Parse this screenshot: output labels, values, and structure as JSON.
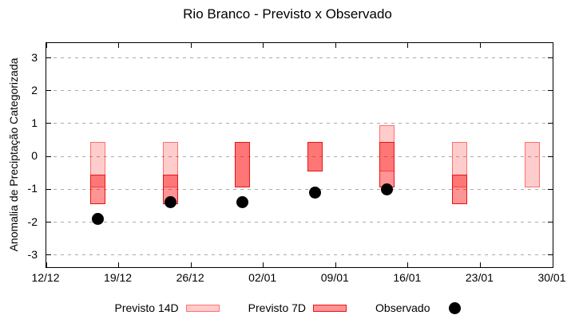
{
  "title": "Rio Branco - Previsto x Observado",
  "y_axis": {
    "label": "Anomalia de Preciptação Categorizada",
    "tick_labels": [
      "3",
      "2",
      "1",
      "0",
      "-1",
      "-2",
      "-3"
    ],
    "tick_values": [
      3,
      2,
      1,
      0,
      -1,
      -2,
      -3
    ]
  },
  "x_axis": {
    "tick_labels": [
      "12/12",
      "19/12",
      "26/12",
      "02/01",
      "09/01",
      "16/01",
      "23/01",
      "30/01"
    ],
    "tick_days": [
      0,
      7,
      14,
      21,
      28,
      35,
      42,
      49
    ]
  },
  "legend": {
    "previsto_14d_label": "Previsto 14D",
    "previsto_7d_label": "Previsto 7D",
    "observado_label": "Observado"
  },
  "colors": {
    "forecast_base": "#ff0000",
    "fill_14d_on_white": "#ffcccc",
    "border_14d_on_white": "#ff8c8c",
    "fill_7d_on_white": "#ff9494",
    "fill_overlap_on_white": "#ff7070",
    "border_7d": "#e81414",
    "observed": "#000000",
    "gridline": "#ababab"
  },
  "chart_data": {
    "type": "bar",
    "subtype": "range-bars-with-scatter-overlay",
    "title": "Rio Branco - Previsto x Observado",
    "xlabel": "",
    "ylabel": "Anomalia de Preciptação Categorizada",
    "ylim": [
      -3.37,
      3.45
    ],
    "xlim_days": [
      0,
      49
    ],
    "grid": "horizontal-dashed",
    "legend_position": "bottom",
    "x_tick_labels": [
      "12/12",
      "19/12",
      "26/12",
      "02/01",
      "09/01",
      "16/01",
      "23/01",
      "30/01"
    ],
    "dates": [
      "17/12",
      "24/12",
      "31/12",
      "07/01",
      "14/01",
      "21/01",
      "28/01"
    ],
    "x_days": [
      5,
      12,
      19,
      26,
      33,
      40,
      47
    ],
    "series": [
      {
        "name": "Previsto 14D",
        "type": "range-bar",
        "ranges": [
          [
            -0.95,
            0.45
          ],
          [
            -0.95,
            0.45
          ],
          [
            -0.95,
            0.45
          ],
          [
            -0.45,
            0.45
          ],
          [
            -0.45,
            0.95
          ],
          [
            -0.95,
            0.45
          ],
          [
            -0.95,
            0.45
          ]
        ]
      },
      {
        "name": "Previsto 7D",
        "type": "range-bar",
        "ranges": [
          [
            -1.45,
            -0.55
          ],
          [
            -1.45,
            -0.55
          ],
          [
            -0.95,
            0.45
          ],
          [
            -0.45,
            0.45
          ],
          [
            -0.95,
            0.45
          ],
          [
            -1.45,
            -0.55
          ],
          null
        ]
      },
      {
        "name": "Observado",
        "type": "scatter",
        "values": [
          -1.9,
          -1.4,
          -1.4,
          -1.1,
          -1.0,
          null,
          null
        ]
      }
    ]
  }
}
